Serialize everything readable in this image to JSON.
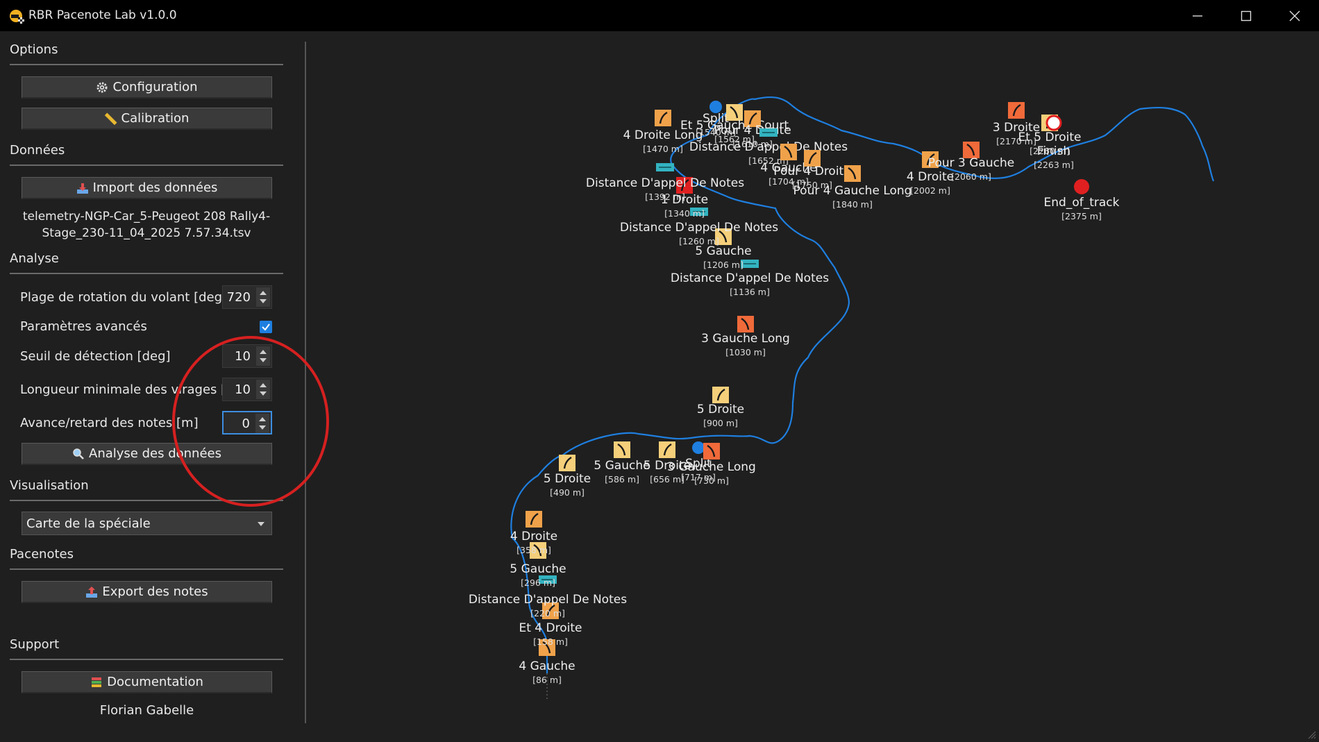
{
  "window": {
    "title": "RBR Pacenote Lab v1.0.0",
    "icon": "rally-helmet-icon",
    "controls": [
      "minimize-icon",
      "maximize-icon",
      "close-icon"
    ]
  },
  "options": {
    "title": "Options",
    "configuration_label": "Configuration",
    "calibration_label": "Calibration"
  },
  "data_section": {
    "title": "Données",
    "import_label": "Import des données",
    "filename_line1": "telemetry-NGP-Car_5-Peugeot 208 Rally4-",
    "filename_line2": "Stage_230-11_04_2025 7.57.34.tsv"
  },
  "analysis": {
    "title": "Analyse",
    "steering_range_label": "Plage de rotation du volant [deg]",
    "steering_range_value": "720",
    "advanced_label": "Paramètres avancés",
    "advanced_checked": true,
    "threshold_label": "Seuil de détection [deg]",
    "threshold_value": "10",
    "min_length_label": "Longueur minimale des virages [m]",
    "min_length_value": "10",
    "offset_label": "Avance/retard des notes [m]",
    "offset_value": "0",
    "analyze_label": "Analyse des données"
  },
  "visualisation": {
    "title": "Visualisation",
    "selected": "Carte de la spéciale"
  },
  "pacenotes": {
    "title": "Pacenotes",
    "export_label": "Export des notes"
  },
  "support": {
    "title": "Support",
    "documentation_label": "Documentation",
    "author": "Florian Gabelle"
  },
  "map": {
    "route_color": "#1f7fe0",
    "notes": [
      {
        "label": "4 Gauche",
        "dist": "[86 m]",
        "kind": "right",
        "color": "#f0a24a"
      },
      {
        "label": "Et 4 Droite",
        "dist": "[158 m]",
        "kind": "left",
        "color": "#f0a24a"
      },
      {
        "label": "Distance D'appel De Notes",
        "dist": "[220 m]",
        "kind": "dist",
        "color": "#33b3c0"
      },
      {
        "label": "5 Gauche",
        "dist": "[296 m]",
        "kind": "right",
        "color": "#f5cf7a"
      },
      {
        "label": "4 Droite",
        "dist": "[358 m]",
        "kind": "left",
        "color": "#f0a24a"
      },
      {
        "label": "5 Droite",
        "dist": "[490 m]",
        "kind": "left",
        "color": "#f5cf7a"
      },
      {
        "label": "5 Gauche",
        "dist": "[586 m]",
        "kind": "right",
        "color": "#f5cf7a"
      },
      {
        "label": "5 Droite",
        "dist": "[656 m]",
        "kind": "left",
        "color": "#f5cf7a"
      },
      {
        "label": "Split",
        "dist": "[717 m]",
        "kind": "split",
        "color": "#1f7fe0"
      },
      {
        "label": "3 Gauche Long",
        "dist": "[730 m]",
        "kind": "right",
        "color": "#f06a3a"
      },
      {
        "label": "5 Droite",
        "dist": "[900 m]",
        "kind": "left",
        "color": "#f5cf7a"
      },
      {
        "label": "3 Gauche Long",
        "dist": "[1030 m]",
        "kind": "right",
        "color": "#f06a3a"
      },
      {
        "label": "Distance D'appel De Notes",
        "dist": "[1136 m]",
        "kind": "dist",
        "color": "#33b3c0"
      },
      {
        "label": "5 Gauche",
        "dist": "[1206 m]",
        "kind": "right",
        "color": "#f5cf7a"
      },
      {
        "label": "Distance D'appel De Notes",
        "dist": "[1260 m]",
        "kind": "dist",
        "color": "#33b3c0"
      },
      {
        "label": "1 Droite",
        "dist": "[1340 m]",
        "kind": "left",
        "color": "#e02020"
      },
      {
        "label": "Distance D'appel De Notes",
        "dist": "[1392 m]",
        "kind": "dist",
        "color": "#33b3c0"
      },
      {
        "label": "4 Droite Long",
        "dist": "[1470 m]",
        "kind": "left",
        "color": "#f0a24a"
      },
      {
        "label": "Split",
        "dist": "[1540 m]",
        "kind": "split",
        "color": "#1f7fe0"
      },
      {
        "label": "Et 5 Gauche Court",
        "dist": "[1562 m]",
        "kind": "right",
        "color": "#f5cf7a"
      },
      {
        "label": "Pour 4 Droite",
        "dist": "[1610 m]",
        "kind": "left",
        "color": "#f0a24a"
      },
      {
        "label": "Distance D'appel De Notes",
        "dist": "[1652 m]",
        "kind": "dist",
        "color": "#33b3c0"
      },
      {
        "label": "4 Gauche",
        "dist": "[1704 m]",
        "kind": "right",
        "color": "#f0a24a"
      },
      {
        "label": "Pour 4 Droite",
        "dist": "[1750 m]",
        "kind": "left",
        "color": "#f0a24a"
      },
      {
        "label": "Pour 4 Gauche Long",
        "dist": "[1840 m]",
        "kind": "right",
        "color": "#f0a24a"
      },
      {
        "label": "4 Droite",
        "dist": "[2002 m]",
        "kind": "left",
        "color": "#f0a24a"
      },
      {
        "label": "Pour 3 Gauche",
        "dist": "[2060 m]",
        "kind": "right",
        "color": "#f06a3a"
      },
      {
        "label": "3 Droite",
        "dist": "[2170 m]",
        "kind": "left",
        "color": "#f06a3a"
      },
      {
        "label": "Et 5 Droite",
        "dist": "[2260 m]",
        "kind": "left",
        "color": "#f5cf7a"
      },
      {
        "label": "Finish",
        "dist": "[2263 m]",
        "kind": "finish",
        "color": "#ffffff"
      },
      {
        "label": "End_of_track",
        "dist": "[2375 m]",
        "kind": "stop",
        "color": "#e02020"
      }
    ]
  }
}
